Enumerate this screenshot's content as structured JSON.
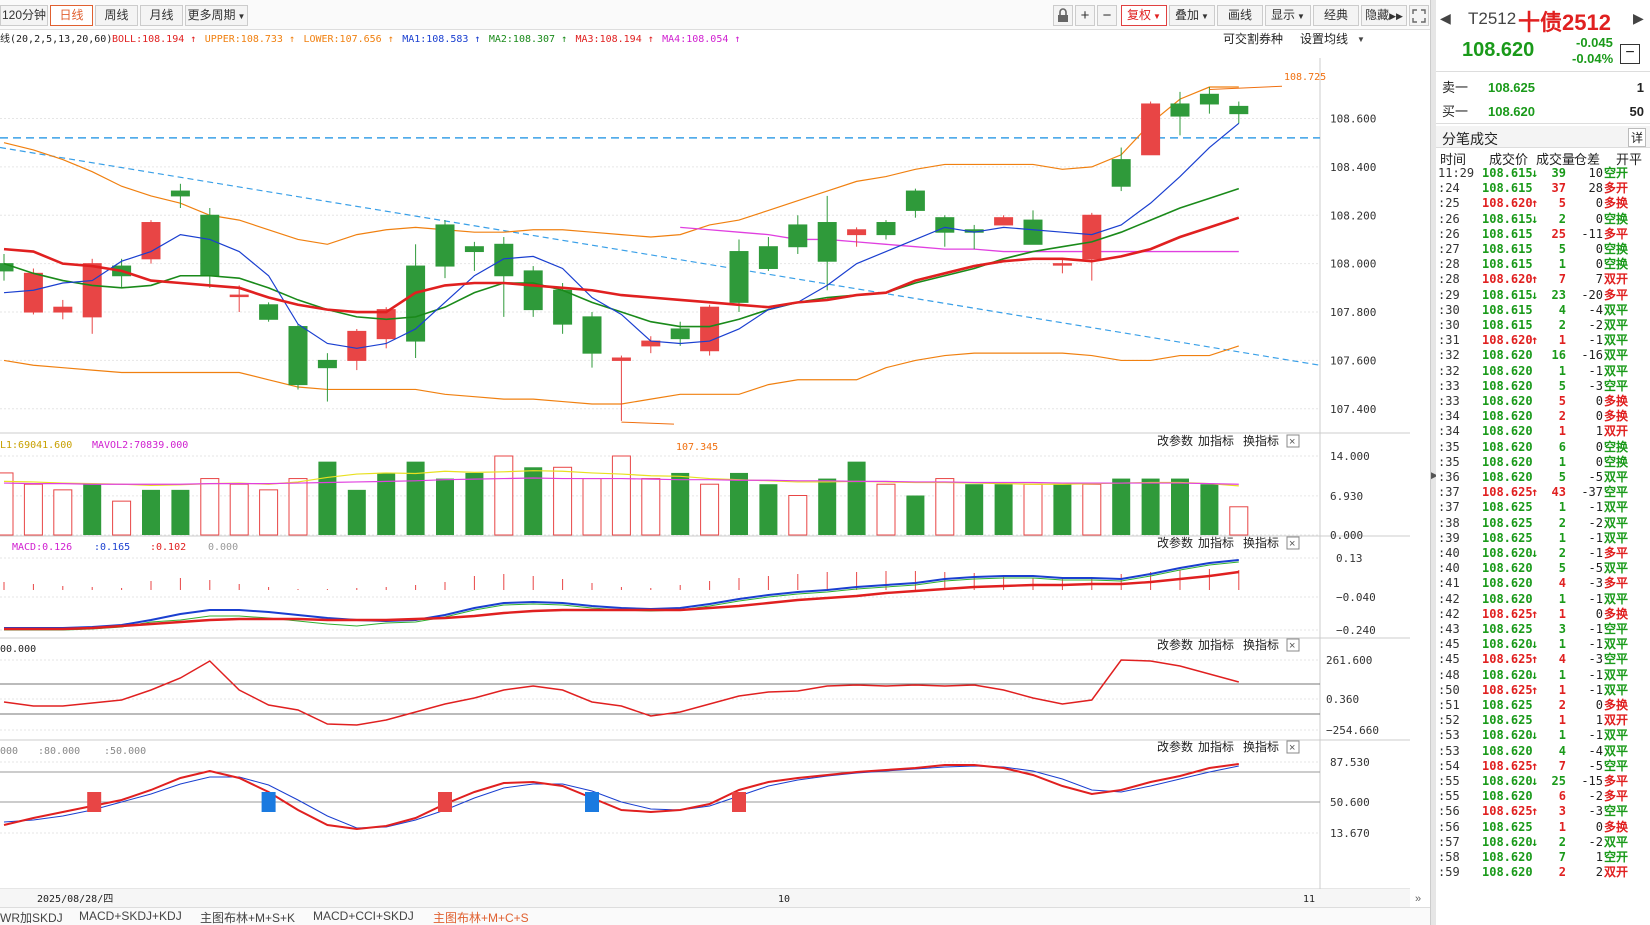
{
  "toolbar": {
    "periods": [
      "120分钟",
      "日线",
      "周线",
      "月线",
      "更多周期"
    ],
    "active_period": "日线",
    "tools": [
      "复权",
      "叠加",
      "画线",
      "显示",
      "经典",
      "隐藏"
    ],
    "active_tool": "复权"
  },
  "indicator_line": {
    "params": "线(20,2,5,13,20,60)",
    "items": [
      {
        "label": "BOLL:108.194",
        "color": "#e02020"
      },
      {
        "label": "UPPER:108.733",
        "color": "#f08010"
      },
      {
        "label": "LOWER:107.656",
        "color": "#f08010"
      },
      {
        "label": "MA1:108.583",
        "color": "#1a3fd0"
      },
      {
        "label": "MA2:108.307",
        "color": "#1a8a1a"
      },
      {
        "label": "MA3:108.194",
        "color": "#e02020"
      },
      {
        "label": "MA4:108.054",
        "color": "#d020d0"
      }
    ],
    "link1": "可交割券种",
    "link2": "设置均线"
  },
  "panel_actions": [
    "改参数",
    "加指标",
    "换指标"
  ],
  "vol_label": {
    "a": "L1:69041.600",
    "b": "MAVOL2:70839.000"
  },
  "macd_label": {
    "a": "MACD:0.126",
    "b": ":0.165",
    "c": ":0.102",
    "d": "0.000"
  },
  "p3_label": "00.000",
  "p4_label": {
    "a": "000",
    "b": ":80.000",
    "c": ":50.000"
  },
  "axes": {
    "main": [
      "108.600",
      "108.400",
      "108.200",
      "108.000",
      "107.800",
      "107.600",
      "107.400"
    ],
    "vol": [
      "14.000",
      "6.930",
      "0.000"
    ],
    "macd": [
      "0.13",
      "−0.040",
      "−0.240"
    ],
    "p3": [
      "261.600",
      "0.360",
      "−254.660"
    ],
    "p4": [
      "87.530",
      "50.600",
      "13.670"
    ]
  },
  "annotations": {
    "high": "108.725",
    "low": "107.345"
  },
  "date_axis": {
    "start": "2025/08/28/四",
    "m1": "10",
    "m2": "11"
  },
  "bottom_tabs": [
    "WR加SKDJ",
    "MACD+SKDJ+KDJ",
    "主图布林+M+S+K",
    "MACD+CCI+SKDJ",
    "主图布林+M+C+S"
  ],
  "bottom_active": "主图布林+M+C+S",
  "quote": {
    "code": "T2512",
    "name": "十债2512",
    "price": "108.620",
    "change": "-0.045",
    "pct": "-0.04%",
    "sell_label": "卖一",
    "sell_price": "108.625",
    "sell_vol": "1",
    "buy_label": "买一",
    "buy_price": "108.620",
    "buy_vol": "50",
    "ticks_title": "分笔成交",
    "detail": "详",
    "cols": [
      "时间",
      "成交价",
      "成交量",
      "仓差",
      "开平"
    ]
  },
  "ticks": [
    [
      "11:29",
      "108.615",
      "↓",
      "39",
      "10",
      "空开"
    ],
    [
      ":24",
      "108.615",
      "",
      "37",
      "28",
      "多开"
    ],
    [
      ":25",
      "108.620",
      "↑",
      "5",
      "0",
      "多换"
    ],
    [
      ":26",
      "108.615",
      "↓",
      "2",
      "0",
      "空换"
    ],
    [
      ":26",
      "108.615",
      "",
      "25",
      "-11",
      "多平"
    ],
    [
      ":27",
      "108.615",
      "",
      "5",
      "0",
      "空换"
    ],
    [
      ":28",
      "108.615",
      "",
      "1",
      "0",
      "空换"
    ],
    [
      ":28",
      "108.620",
      "↑",
      "7",
      "7",
      "双开"
    ],
    [
      ":29",
      "108.615",
      "↓",
      "23",
      "-20",
      "多平"
    ],
    [
      ":30",
      "108.615",
      "",
      "4",
      "-4",
      "双平"
    ],
    [
      ":30",
      "108.615",
      "",
      "2",
      "-2",
      "双平"
    ],
    [
      ":31",
      "108.620",
      "↑",
      "1",
      "-1",
      "双平"
    ],
    [
      ":32",
      "108.620",
      "",
      "16",
      "-16",
      "双平"
    ],
    [
      ":32",
      "108.620",
      "",
      "1",
      "-1",
      "双平"
    ],
    [
      ":33",
      "108.620",
      "",
      "5",
      "-3",
      "空平"
    ],
    [
      ":33",
      "108.620",
      "",
      "5",
      "0",
      "多换"
    ],
    [
      ":34",
      "108.620",
      "",
      "2",
      "0",
      "多换"
    ],
    [
      ":34",
      "108.620",
      "",
      "1",
      "1",
      "双开"
    ],
    [
      ":35",
      "108.620",
      "",
      "6",
      "0",
      "空换"
    ],
    [
      ":35",
      "108.620",
      "",
      "1",
      "0",
      "空换"
    ],
    [
      ":36",
      "108.620",
      "",
      "5",
      "-5",
      "双平"
    ],
    [
      ":37",
      "108.625",
      "↑",
      "43",
      "-37",
      "空平"
    ],
    [
      ":37",
      "108.625",
      "",
      "1",
      "-1",
      "双平"
    ],
    [
      ":38",
      "108.625",
      "",
      "2",
      "-2",
      "双平"
    ],
    [
      ":39",
      "108.625",
      "",
      "1",
      "-1",
      "双平"
    ],
    [
      ":40",
      "108.620",
      "↓",
      "2",
      "-1",
      "多平"
    ],
    [
      ":40",
      "108.620",
      "",
      "5",
      "-5",
      "双平"
    ],
    [
      ":41",
      "108.620",
      "",
      "4",
      "-3",
      "多平"
    ],
    [
      ":42",
      "108.620",
      "",
      "1",
      "-1",
      "双平"
    ],
    [
      ":42",
      "108.625",
      "↑",
      "1",
      "0",
      "多换"
    ],
    [
      ":43",
      "108.625",
      "",
      "3",
      "-1",
      "空平"
    ],
    [
      ":45",
      "108.620",
      "↓",
      "1",
      "-1",
      "双平"
    ],
    [
      ":45",
      "108.625",
      "↑",
      "4",
      "-3",
      "空平"
    ],
    [
      ":48",
      "108.620",
      "↓",
      "1",
      "-1",
      "双平"
    ],
    [
      ":50",
      "108.625",
      "↑",
      "1",
      "-1",
      "双平"
    ],
    [
      ":51",
      "108.625",
      "",
      "2",
      "0",
      "多换"
    ],
    [
      ":52",
      "108.625",
      "",
      "1",
      "1",
      "双开"
    ],
    [
      ":53",
      "108.620",
      "↓",
      "1",
      "-1",
      "双平"
    ],
    [
      ":53",
      "108.620",
      "",
      "4",
      "-4",
      "双平"
    ],
    [
      ":54",
      "108.625",
      "↑",
      "7",
      "-5",
      "空平"
    ],
    [
      ":55",
      "108.620",
      "↓",
      "25",
      "-15",
      "多平"
    ],
    [
      ":55",
      "108.620",
      "",
      "6",
      "-2",
      "多平"
    ],
    [
      ":56",
      "108.625",
      "↑",
      "3",
      "-3",
      "空平"
    ],
    [
      ":56",
      "108.625",
      "",
      "1",
      "0",
      "多换"
    ],
    [
      ":57",
      "108.620",
      "↓",
      "2",
      "-2",
      "双平"
    ],
    [
      ":58",
      "108.620",
      "",
      "7",
      "1",
      "空开"
    ],
    [
      ":59",
      "108.620",
      "",
      "2",
      "2",
      "双开"
    ]
  ],
  "chart_data": {
    "type": "candlestick",
    "ylim": [
      107.3,
      108.85
    ],
    "candles": [
      [
        108.0,
        107.97,
        108.04,
        107.93
      ],
      [
        107.8,
        107.96,
        107.98,
        107.79
      ],
      [
        107.8,
        107.82,
        107.85,
        107.77
      ],
      [
        107.78,
        108.0,
        108.02,
        107.71
      ],
      [
        107.99,
        107.95,
        108.02,
        107.9
      ],
      [
        108.02,
        108.17,
        108.18,
        108.0
      ],
      [
        108.3,
        108.28,
        108.33,
        108.23
      ],
      [
        108.2,
        107.95,
        108.23,
        107.9
      ],
      [
        107.87,
        107.87,
        107.91,
        107.8
      ],
      [
        107.83,
        107.77,
        107.84,
        107.76
      ],
      [
        107.74,
        107.5,
        107.75,
        107.48
      ],
      [
        107.6,
        107.57,
        107.63,
        107.43
      ],
      [
        107.6,
        107.72,
        107.73,
        107.56
      ],
      [
        107.69,
        107.81,
        107.82,
        107.65
      ],
      [
        107.99,
        107.68,
        108.08,
        107.61
      ],
      [
        108.16,
        107.99,
        108.18,
        107.94
      ],
      [
        108.07,
        108.05,
        108.09,
        107.97
      ],
      [
        108.08,
        107.95,
        108.11,
        107.78
      ],
      [
        107.97,
        107.81,
        107.99,
        107.78
      ],
      [
        107.89,
        107.75,
        107.92,
        107.71
      ],
      [
        107.78,
        107.63,
        107.8,
        107.57
      ],
      [
        107.6,
        107.61,
        107.62,
        107.35
      ],
      [
        107.66,
        107.68,
        107.7,
        107.63
      ],
      [
        107.73,
        107.69,
        107.76,
        107.66
      ],
      [
        107.64,
        107.82,
        107.83,
        107.62
      ],
      [
        108.05,
        107.84,
        108.1,
        107.8
      ],
      [
        108.07,
        107.98,
        108.11,
        107.97
      ],
      [
        108.16,
        108.07,
        108.2,
        108.04
      ],
      [
        108.17,
        108.01,
        108.28,
        107.89
      ],
      [
        108.12,
        108.14,
        108.15,
        108.07
      ],
      [
        108.17,
        108.12,
        108.18,
        108.1
      ],
      [
        108.3,
        108.22,
        108.31,
        108.19
      ],
      [
        108.19,
        108.13,
        108.2,
        108.07
      ],
      [
        108.14,
        108.13,
        108.16,
        108.06
      ],
      [
        108.16,
        108.19,
        108.2,
        108.16
      ],
      [
        108.18,
        108.08,
        108.22,
        108.08
      ],
      [
        108.0,
        108.0,
        108.02,
        107.96
      ],
      [
        108.02,
        108.2,
        108.21,
        107.93
      ],
      [
        108.43,
        108.32,
        108.48,
        108.3
      ],
      [
        108.45,
        108.66,
        108.67,
        108.46
      ],
      [
        108.66,
        108.61,
        108.71,
        108.53
      ],
      [
        108.7,
        108.66,
        108.73,
        108.62
      ],
      [
        108.65,
        108.62,
        108.67,
        108.58
      ]
    ],
    "ma": {
      "mid": [
        108.06,
        108.05,
        108.0,
        107.99,
        107.97,
        107.93,
        107.92,
        107.91,
        107.9,
        107.86,
        107.83,
        107.81,
        107.8,
        107.8,
        107.88,
        107.91,
        107.92,
        107.92,
        107.91,
        107.9,
        107.89,
        107.87,
        107.86,
        107.85,
        107.84,
        107.83,
        107.82,
        107.84,
        107.85,
        107.87,
        107.88,
        107.93,
        107.96,
        107.99,
        108.01,
        108.02,
        108.02,
        108.01,
        108.03,
        108.06,
        108.11,
        108.15,
        108.19
      ],
      "upper": [
        108.5,
        108.47,
        108.43,
        108.38,
        108.32,
        108.28,
        108.25,
        108.2,
        108.18,
        108.14,
        108.1,
        108.08,
        108.12,
        108.14,
        108.15,
        108.14,
        108.13,
        108.13,
        108.14,
        108.14,
        108.13,
        108.12,
        108.11,
        108.12,
        108.16,
        108.18,
        108.22,
        108.26,
        108.3,
        108.34,
        108.36,
        108.39,
        108.41,
        108.41,
        108.41,
        108.41,
        108.39,
        108.4,
        108.45,
        108.58,
        108.68,
        108.73,
        108.73
      ],
      "lower": [
        107.6,
        107.58,
        107.57,
        107.56,
        107.55,
        107.55,
        107.55,
        107.55,
        107.55,
        107.52,
        107.49,
        107.48,
        107.48,
        107.48,
        107.48,
        107.46,
        107.45,
        107.44,
        107.44,
        107.43,
        107.42,
        107.42,
        107.44,
        107.46,
        107.46,
        107.46,
        107.5,
        107.52,
        107.52,
        107.52,
        107.57,
        107.6,
        107.62,
        107.63,
        107.63,
        107.63,
        107.63,
        107.62,
        107.6,
        107.6,
        107.62,
        107.62,
        107.66
      ],
      "ma1": [
        107.88,
        107.89,
        107.92,
        107.93,
        108.01,
        108.05,
        108.12,
        108.1,
        108.05,
        107.95,
        107.75,
        107.67,
        107.65,
        107.67,
        107.73,
        107.84,
        107.95,
        108.02,
        108.03,
        107.98,
        107.86,
        107.79,
        107.68,
        107.67,
        107.68,
        107.73,
        107.81,
        107.84,
        107.91,
        108.0,
        108.05,
        108.1,
        108.15,
        108.13,
        108.15,
        108.14,
        108.13,
        108.12,
        108.16,
        108.25,
        108.36,
        108.48,
        108.58
      ],
      "ma2": [
        108.0,
        107.96,
        107.93,
        107.91,
        107.9,
        107.91,
        107.95,
        107.95,
        107.94,
        107.9,
        107.85,
        107.81,
        107.78,
        107.77,
        107.78,
        107.82,
        107.88,
        107.92,
        107.92,
        107.89,
        107.84,
        107.8,
        107.76,
        107.74,
        107.74,
        107.77,
        107.81,
        107.84,
        107.86,
        107.87,
        107.88,
        107.92,
        107.95,
        107.98,
        108.02,
        108.05,
        108.07,
        108.09,
        108.13,
        108.18,
        108.23,
        108.27,
        108.31
      ],
      "ma4": [
        null,
        null,
        null,
        null,
        null,
        null,
        null,
        null,
        null,
        null,
        null,
        null,
        null,
        null,
        null,
        null,
        null,
        null,
        null,
        null,
        null,
        null,
        null,
        108.15,
        108.14,
        108.13,
        108.12,
        108.1,
        108.1,
        108.09,
        108.08,
        108.07,
        108.06,
        108.06,
        108.05,
        108.05,
        108.05,
        108.05,
        108.05,
        108.05,
        108.05,
        108.05,
        108.05
      ]
    },
    "volumes": [
      [
        11,
        1
      ],
      [
        9,
        1
      ],
      [
        8,
        1
      ],
      [
        9,
        0
      ],
      [
        6,
        1
      ],
      [
        8,
        0
      ],
      [
        8,
        0
      ],
      [
        10,
        1
      ],
      [
        9,
        1
      ],
      [
        8,
        1
      ],
      [
        10,
        1
      ],
      [
        13,
        0
      ],
      [
        8,
        0
      ],
      [
        11,
        0
      ],
      [
        13,
        0
      ],
      [
        10,
        0
      ],
      [
        11,
        0
      ],
      [
        14,
        1
      ],
      [
        12,
        0
      ],
      [
        12,
        1
      ],
      [
        10,
        1
      ],
      [
        14,
        1
      ],
      [
        10,
        1
      ],
      [
        11,
        0
      ],
      [
        9,
        1
      ],
      [
        11,
        0
      ],
      [
        9,
        0
      ],
      [
        7,
        1
      ],
      [
        10,
        0
      ],
      [
        13,
        0
      ],
      [
        9,
        1
      ],
      [
        7,
        0
      ],
      [
        10,
        1
      ],
      [
        9,
        0
      ],
      [
        9,
        0
      ],
      [
        9,
        1
      ],
      [
        9,
        0
      ],
      [
        9,
        1
      ],
      [
        10,
        0
      ],
      [
        10,
        0
      ],
      [
        10,
        0
      ],
      [
        9,
        0
      ],
      [
        5,
        1
      ]
    ],
    "vol_ma": [
      9.5,
      9.4,
      9.2,
      9.1,
      9.0,
      8.8,
      8.9,
      9.1,
      9.2,
      9.0,
      9.4,
      10.2,
      10.8,
      11.0,
      10.9,
      11.3,
      11.1,
      11.2,
      11.4,
      11.3,
      11.0,
      10.8,
      10.5,
      10.4,
      10.0,
      9.8,
      9.6,
      9.4,
      9.4,
      9.5,
      9.4,
      9.3,
      9.3,
      9.2,
      9.1,
      9.0,
      9.0,
      9.1,
      9.2,
      9.3,
      9.3,
      9.1,
      8.7
    ],
    "vol_ma2": [
      9.2,
      9.1,
      9.1,
      9.0,
      9.0,
      9.0,
      9.0,
      9.1,
      9.1,
      9.1,
      9.2,
      9.3,
      9.4,
      9.5,
      9.6,
      9.8,
      9.9,
      10.0,
      10.1,
      10.0,
      10.0,
      10.0,
      9.9,
      9.8,
      9.8,
      9.7,
      9.7,
      9.6,
      9.6,
      9.5,
      9.5,
      9.4,
      9.4,
      9.3,
      9.3,
      9.3,
      9.2,
      9.2,
      9.2,
      9.2,
      9.2,
      9.1,
      9.0
    ]
  }
}
